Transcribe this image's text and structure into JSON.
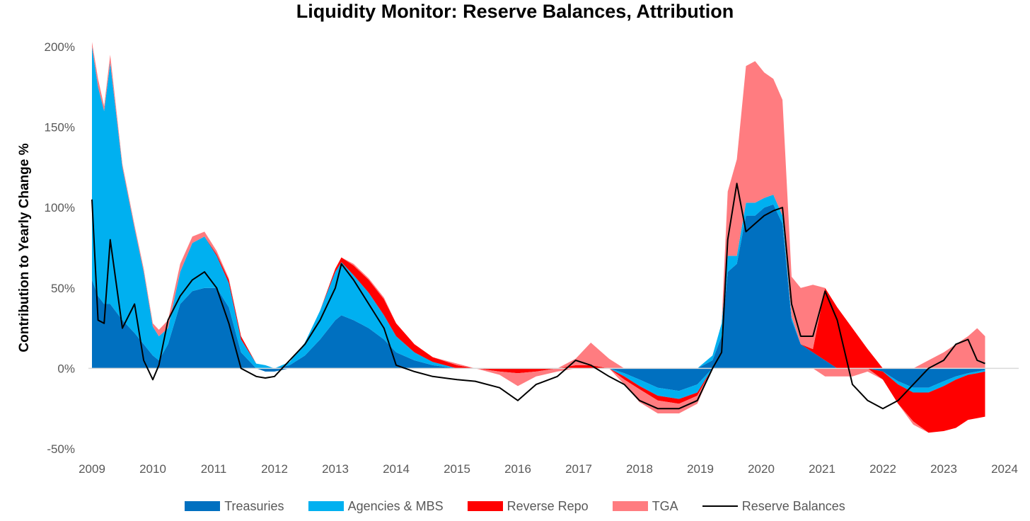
{
  "chart_data": {
    "type": "area",
    "title": "Liquidity Monitor: Reserve Balances, Attribution",
    "ylabel": "Contribution to Yearly Change %",
    "xlabel": "",
    "ylim": [
      -0.5,
      2.0
    ],
    "xlim": [
      2009,
      2024
    ],
    "y_ticks": [
      -0.5,
      0,
      0.5,
      1.0,
      1.5,
      2.0
    ],
    "y_tick_labels": [
      "-50%",
      "0%",
      "50%",
      "100%",
      "150%",
      "200%"
    ],
    "x_ticks": [
      2009,
      2010,
      2011,
      2012,
      2013,
      2014,
      2015,
      2016,
      2017,
      2018,
      2019,
      2020,
      2021,
      2022,
      2023,
      2024
    ],
    "x_tick_labels": [
      "2009",
      "2010",
      "2011",
      "2012",
      "2013",
      "2014",
      "2015",
      "2016",
      "2017",
      "2018",
      "2019",
      "2020",
      "2021",
      "2022",
      "2023",
      "2024"
    ],
    "grid": false,
    "legend_position": "bottom",
    "x": [
      2009.0,
      2009.1,
      2009.2,
      2009.3,
      2009.5,
      2009.7,
      2009.85,
      2010.0,
      2010.1,
      2010.25,
      2010.45,
      2010.65,
      2010.85,
      2011.05,
      2011.25,
      2011.45,
      2011.7,
      2011.85,
      2012.0,
      2012.25,
      2012.5,
      2012.75,
      2013.0,
      2013.1,
      2013.3,
      2013.55,
      2013.8,
      2014.0,
      2014.3,
      2014.6,
      2015.0,
      2015.3,
      2015.7,
      2016.0,
      2016.3,
      2016.65,
      2016.95,
      2017.2,
      2017.5,
      2017.75,
      2018.0,
      2018.3,
      2018.65,
      2018.95,
      2019.2,
      2019.35,
      2019.45,
      2019.6,
      2019.75,
      2019.9,
      2020.05,
      2020.2,
      2020.35,
      2020.5,
      2020.65,
      2020.85,
      2021.05,
      2021.25,
      2021.5,
      2021.75,
      2022.0,
      2022.25,
      2022.5,
      2022.75,
      2023.0,
      2023.2,
      2023.4,
      2023.55,
      2023.68
    ],
    "series": [
      {
        "name": "Treasuries",
        "color": "#0070C0",
        "kind": "area",
        "values": [
          0.55,
          0.45,
          0.4,
          0.4,
          0.3,
          0.22,
          0.15,
          0.08,
          0.05,
          0.15,
          0.4,
          0.48,
          0.5,
          0.5,
          0.38,
          0.1,
          0.0,
          -0.02,
          -0.02,
          0.02,
          0.08,
          0.18,
          0.3,
          0.33,
          0.3,
          0.25,
          0.18,
          0.1,
          0.05,
          0.02,
          0.0,
          0.0,
          0.0,
          0.0,
          0.0,
          0.0,
          0.0,
          0.0,
          0.0,
          -0.03,
          -0.07,
          -0.12,
          -0.14,
          -0.1,
          0.05,
          0.2,
          0.6,
          0.65,
          0.95,
          0.95,
          1.0,
          1.02,
          0.9,
          0.3,
          0.15,
          0.1,
          0.05,
          0.0,
          0.0,
          0.0,
          -0.02,
          -0.08,
          -0.12,
          -0.12,
          -0.08,
          -0.05,
          -0.03,
          -0.02,
          -0.01
        ]
      },
      {
        "name": "Agencies & MBS",
        "color": "#00B0F0",
        "kind": "area",
        "values": [
          1.45,
          1.3,
          1.2,
          1.5,
          0.95,
          0.65,
          0.45,
          0.18,
          0.15,
          0.1,
          0.2,
          0.3,
          0.32,
          0.2,
          0.15,
          0.08,
          0.03,
          0.02,
          0.0,
          0.02,
          0.08,
          0.18,
          0.3,
          0.33,
          0.28,
          0.22,
          0.15,
          0.1,
          0.05,
          0.02,
          0.0,
          0.0,
          0.0,
          0.0,
          0.0,
          0.0,
          0.0,
          0.0,
          0.0,
          -0.02,
          -0.04,
          -0.05,
          -0.05,
          -0.05,
          0.03,
          0.08,
          0.1,
          0.05,
          0.08,
          0.08,
          0.06,
          0.06,
          0.05,
          0.02,
          0.0,
          0.0,
          0.0,
          0.0,
          0.0,
          0.0,
          0.0,
          -0.02,
          -0.03,
          -0.03,
          -0.03,
          -0.02,
          -0.01,
          -0.01,
          -0.01
        ]
      },
      {
        "name": "Reverse Repo",
        "color": "#FF0000",
        "kind": "area",
        "values": [
          0.0,
          0.0,
          0.0,
          0.0,
          0.0,
          0.0,
          0.0,
          0.0,
          0.0,
          0.0,
          0.0,
          0.0,
          0.0,
          0.01,
          0.02,
          0.02,
          0.0,
          0.0,
          0.0,
          0.0,
          0.0,
          0.0,
          0.02,
          0.03,
          0.06,
          0.08,
          0.1,
          0.08,
          0.05,
          0.03,
          0.02,
          0.0,
          -0.02,
          -0.03,
          -0.02,
          0.0,
          0.02,
          0.02,
          0.0,
          -0.02,
          -0.02,
          -0.03,
          -0.03,
          -0.02,
          0.0,
          0.0,
          0.0,
          0.0,
          0.0,
          0.0,
          0.0,
          0.0,
          0.0,
          0.0,
          0.0,
          0.02,
          0.45,
          0.38,
          0.25,
          0.12,
          -0.05,
          -0.12,
          -0.18,
          -0.25,
          -0.28,
          -0.3,
          -0.28,
          -0.28,
          -0.28
        ]
      },
      {
        "name": "TGA",
        "color": "#FF7C80",
        "kind": "area",
        "values": [
          0.03,
          0.05,
          0.03,
          0.05,
          0.02,
          0.02,
          0.02,
          0.02,
          0.04,
          0.05,
          0.05,
          0.04,
          0.03,
          0.02,
          0.01,
          0.0,
          0.0,
          0.0,
          0.0,
          0.0,
          0.0,
          0.0,
          0.0,
          0.0,
          0.01,
          0.01,
          0.01,
          0.0,
          0.0,
          0.0,
          0.01,
          0.0,
          -0.02,
          -0.08,
          -0.03,
          -0.02,
          0.04,
          0.14,
          0.06,
          -0.03,
          -0.08,
          -0.08,
          -0.06,
          -0.05,
          0.0,
          0.0,
          0.4,
          0.6,
          0.85,
          0.88,
          0.78,
          0.72,
          0.72,
          0.25,
          0.35,
          0.4,
          -0.05,
          -0.05,
          -0.05,
          -0.02,
          0.0,
          0.0,
          -0.02,
          0.05,
          0.1,
          0.15,
          0.2,
          0.25,
          0.2
        ]
      },
      {
        "name": "Reserve Balances",
        "color": "#000000",
        "kind": "line",
        "values": [
          1.05,
          0.3,
          0.28,
          0.8,
          0.25,
          0.4,
          0.05,
          -0.07,
          0.02,
          0.3,
          0.45,
          0.55,
          0.6,
          0.5,
          0.28,
          0.0,
          -0.05,
          -0.06,
          -0.05,
          0.05,
          0.15,
          0.3,
          0.5,
          0.65,
          0.55,
          0.4,
          0.25,
          0.02,
          -0.02,
          -0.05,
          -0.07,
          -0.08,
          -0.12,
          -0.2,
          -0.1,
          -0.05,
          0.05,
          0.02,
          -0.05,
          -0.1,
          -0.2,
          -0.25,
          -0.25,
          -0.2,
          0.0,
          0.1,
          0.8,
          1.15,
          0.85,
          0.9,
          0.95,
          0.98,
          1.0,
          0.4,
          0.2,
          0.2,
          0.48,
          0.3,
          -0.1,
          -0.2,
          -0.25,
          -0.2,
          -0.1,
          0.0,
          0.05,
          0.15,
          0.18,
          0.05,
          0.03
        ]
      }
    ]
  }
}
